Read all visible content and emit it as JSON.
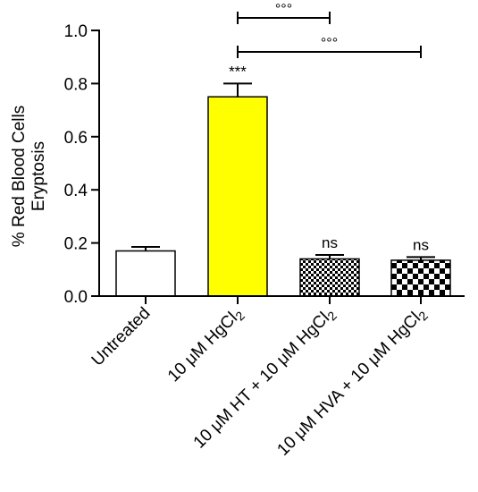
{
  "chart_data": {
    "type": "bar",
    "title": "",
    "ylabel_line1": "% Red Blood Cells",
    "ylabel_line2": "Eryptosis",
    "ylim": [
      0,
      1.0
    ],
    "yticks": [
      "0.0",
      "0.2",
      "0.4",
      "0.6",
      "0.8",
      "1.0"
    ],
    "ytick_values": [
      0,
      0.2,
      0.4,
      0.6,
      0.8,
      1.0
    ],
    "grid": false,
    "categories": [
      {
        "parts": [
          {
            "t": "Untreated"
          }
        ]
      },
      {
        "parts": [
          {
            "t": "10 μM HgCl"
          },
          {
            "t": "2",
            "sub": true
          }
        ]
      },
      {
        "parts": [
          {
            "t": "10 μM HT + 10 μM HgCl"
          },
          {
            "t": "2",
            "sub": true
          }
        ]
      },
      {
        "parts": [
          {
            "t": "10 μM HVA + 10 μM HgCl"
          },
          {
            "t": "2",
            "sub": true
          }
        ]
      }
    ],
    "values": [
      0.17,
      0.75,
      0.14,
      0.135
    ],
    "errors": [
      0.015,
      0.05,
      0.015,
      0.012
    ],
    "fills": [
      "white",
      "yellow",
      "small-checker",
      "large-checker"
    ],
    "colors": {
      "yellow": "#ffff00",
      "white": "#ffffff",
      "black": "#000000"
    },
    "bar_labels": [
      "",
      "***",
      "ns",
      "ns"
    ],
    "comparisons": [
      {
        "from": 1,
        "to": 2,
        "label": "°°°"
      },
      {
        "from": 1,
        "to": 3,
        "label": "°°°"
      }
    ]
  }
}
